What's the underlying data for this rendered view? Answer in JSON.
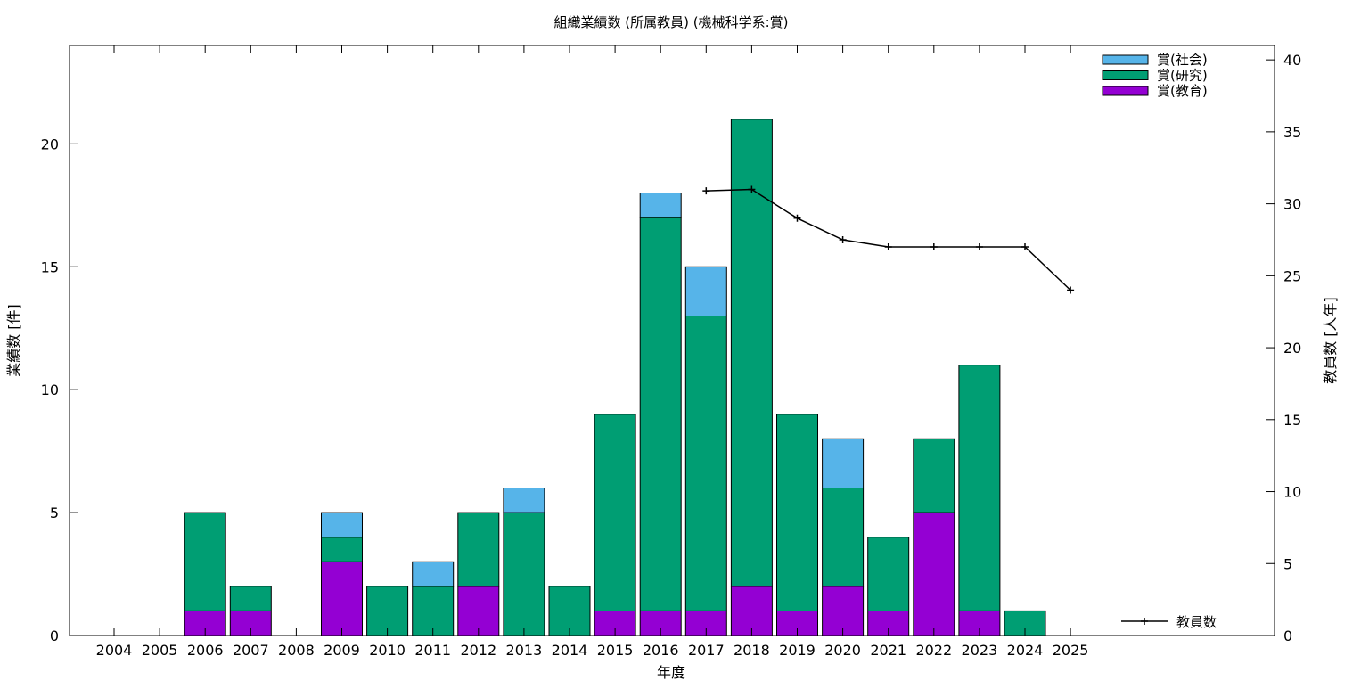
{
  "chart_data": {
    "type": "bar",
    "stacked": true,
    "title": "組織業績数 (所属教員) (機械科学系:賞)",
    "xlabel": "年度",
    "ylabel": "業績数 [件]",
    "y2label": "教員数 [人年]",
    "categories": [
      "2004",
      "2005",
      "2006",
      "2007",
      "2008",
      "2009",
      "2010",
      "2011",
      "2012",
      "2013",
      "2014",
      "2015",
      "2016",
      "2017",
      "2018",
      "2019",
      "2020",
      "2021",
      "2022",
      "2023",
      "2024",
      "2025"
    ],
    "ylim": [
      0,
      24
    ],
    "y2lim": [
      0,
      41
    ],
    "yticks": [
      "0",
      "5",
      "10",
      "15",
      "20"
    ],
    "y2ticks": [
      "0",
      "5",
      "10",
      "15",
      "20",
      "25",
      "30",
      "35",
      "40"
    ],
    "grid": false,
    "legend_position": "top-right",
    "series": [
      {
        "name": "賞(教育)",
        "color": "#9400d3",
        "values": [
          0,
          0,
          1,
          1,
          0,
          3,
          0,
          0,
          2,
          0,
          0,
          1,
          1,
          1,
          2,
          1,
          2,
          1,
          5,
          1,
          0,
          0
        ]
      },
      {
        "name": "賞(研究)",
        "color": "#009e73",
        "values": [
          0,
          0,
          4,
          1,
          0,
          1,
          2,
          2,
          3,
          5,
          2,
          8,
          16,
          12,
          19,
          8,
          4,
          3,
          3,
          10,
          1,
          0
        ]
      },
      {
        "name": "賞(社会)",
        "color": "#56b4e9",
        "values": [
          0,
          0,
          0,
          0,
          0,
          1,
          0,
          1,
          0,
          1,
          0,
          0,
          1,
          2,
          0,
          0,
          2,
          0,
          0,
          0,
          0,
          0
        ]
      }
    ],
    "line_series": {
      "name": "教員数",
      "axis": "right",
      "color": "#000000",
      "x": [
        "2017",
        "2018",
        "2019",
        "2020",
        "2021",
        "2022",
        "2023",
        "2024",
        "2025"
      ],
      "values": [
        30.9,
        31.0,
        29.0,
        27.5,
        27.0,
        27.0,
        27.0,
        27.0,
        24.0
      ]
    }
  }
}
